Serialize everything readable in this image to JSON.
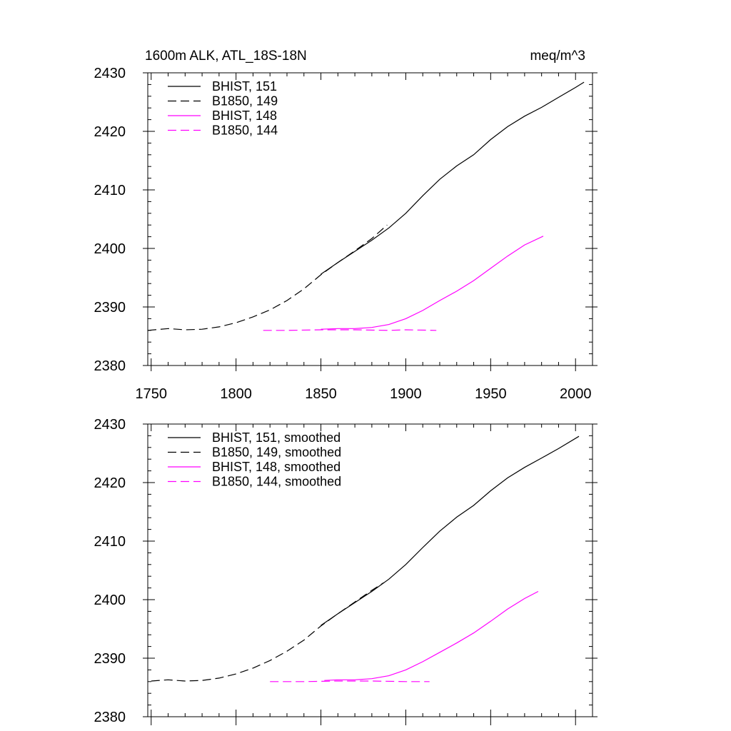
{
  "chart_data": [
    {
      "type": "line",
      "title_left": "1600m ALK, ATL_18S-18N",
      "title_right": "meq/m^3",
      "xlim": [
        1748,
        2010
      ],
      "ylim": [
        2380,
        2430
      ],
      "xticks": [
        1750,
        1800,
        1850,
        1900,
        1950,
        2000
      ],
      "yticks": [
        2380,
        2390,
        2400,
        2410,
        2420,
        2430
      ],
      "x_tick_labels_shown": true,
      "legend_placement": "top-left",
      "series": [
        {
          "name": "BHIST, 151",
          "color": "#000000",
          "dash": "solid",
          "x": [
            1850,
            1860,
            1870,
            1880,
            1890,
            1900,
            1910,
            1920,
            1930,
            1940,
            1950,
            1960,
            1970,
            1980,
            1990,
            2000,
            2005
          ],
          "y": [
            2395.6,
            2397.6,
            2399.5,
            2401.4,
            2403.5,
            2406.0,
            2409.0,
            2411.8,
            2414.1,
            2416.0,
            2418.6,
            2420.8,
            2422.6,
            2424.1,
            2425.8,
            2427.5,
            2428.4
          ]
        },
        {
          "name": "B1850, 149",
          "color": "#000000",
          "dash": "dashed",
          "x": [
            1748,
            1760,
            1770,
            1780,
            1790,
            1800,
            1810,
            1820,
            1830,
            1840,
            1850,
            1860,
            1870,
            1880,
            1889
          ],
          "y": [
            2386.0,
            2386.3,
            2386.1,
            2386.2,
            2386.6,
            2387.3,
            2388.3,
            2389.5,
            2391.1,
            2393.1,
            2395.5,
            2397.6,
            2399.6,
            2401.7,
            2404.0
          ]
        },
        {
          "name": "BHIST, 148",
          "color": "#ff00ff",
          "dash": "solid",
          "x": [
            1850,
            1860,
            1870,
            1880,
            1890,
            1900,
            1910,
            1920,
            1930,
            1940,
            1950,
            1960,
            1970,
            1981
          ],
          "y": [
            2386.2,
            2386.3,
            2386.3,
            2386.5,
            2387.0,
            2388.0,
            2389.4,
            2391.1,
            2392.7,
            2394.5,
            2396.6,
            2398.7,
            2400.6,
            2402.1
          ]
        },
        {
          "name": "B1850, 144",
          "color": "#ff00ff",
          "dash": "dashed",
          "x": [
            1816,
            1830,
            1850,
            1870,
            1890,
            1900,
            1918
          ],
          "y": [
            2386.0,
            2386.0,
            2386.1,
            2386.1,
            2386.0,
            2386.1,
            2386.0
          ]
        }
      ]
    },
    {
      "type": "line",
      "xlim": [
        1748,
        2010
      ],
      "ylim": [
        2380,
        2430
      ],
      "xticks": [
        1750,
        1800,
        1850,
        1900,
        1950,
        2000
      ],
      "yticks": [
        2380,
        2390,
        2400,
        2410,
        2420,
        2430
      ],
      "x_tick_labels_shown": false,
      "legend_placement": "top-left",
      "series": [
        {
          "name": "BHIST, 151, smoothed",
          "color": "#000000",
          "dash": "solid",
          "x": [
            1850,
            1860,
            1870,
            1880,
            1890,
            1900,
            1910,
            1920,
            1930,
            1940,
            1950,
            1960,
            1970,
            1980,
            1990,
            2002
          ],
          "y": [
            2395.6,
            2397.6,
            2399.5,
            2401.4,
            2403.5,
            2406.0,
            2408.9,
            2411.7,
            2414.1,
            2416.1,
            2418.6,
            2420.8,
            2422.6,
            2424.2,
            2425.8,
            2427.9
          ]
        },
        {
          "name": "B1850, 149, smoothed",
          "color": "#000000",
          "dash": "dashed",
          "x": [
            1750,
            1760,
            1770,
            1780,
            1790,
            1800,
            1810,
            1820,
            1830,
            1840,
            1850,
            1860,
            1870,
            1880,
            1887
          ],
          "y": [
            2386.1,
            2386.3,
            2386.1,
            2386.2,
            2386.6,
            2387.3,
            2388.3,
            2389.6,
            2391.2,
            2393.1,
            2395.5,
            2397.6,
            2399.6,
            2401.6,
            2402.9
          ]
        },
        {
          "name": "BHIST, 148, smoothed",
          "color": "#ff00ff",
          "dash": "solid",
          "x": [
            1852,
            1860,
            1870,
            1880,
            1890,
            1900,
            1910,
            1920,
            1930,
            1940,
            1950,
            1960,
            1970,
            1978
          ],
          "y": [
            2386.2,
            2386.3,
            2386.3,
            2386.5,
            2387.0,
            2388.0,
            2389.4,
            2391.0,
            2392.6,
            2394.3,
            2396.3,
            2398.4,
            2400.2,
            2401.4
          ]
        },
        {
          "name": "B1850, 144, smoothed",
          "color": "#ff00ff",
          "dash": "dashed",
          "x": [
            1820,
            1840,
            1860,
            1880,
            1900,
            1914
          ],
          "y": [
            2386.0,
            2386.0,
            2386.1,
            2386.1,
            2386.0,
            2386.0
          ]
        }
      ]
    }
  ]
}
